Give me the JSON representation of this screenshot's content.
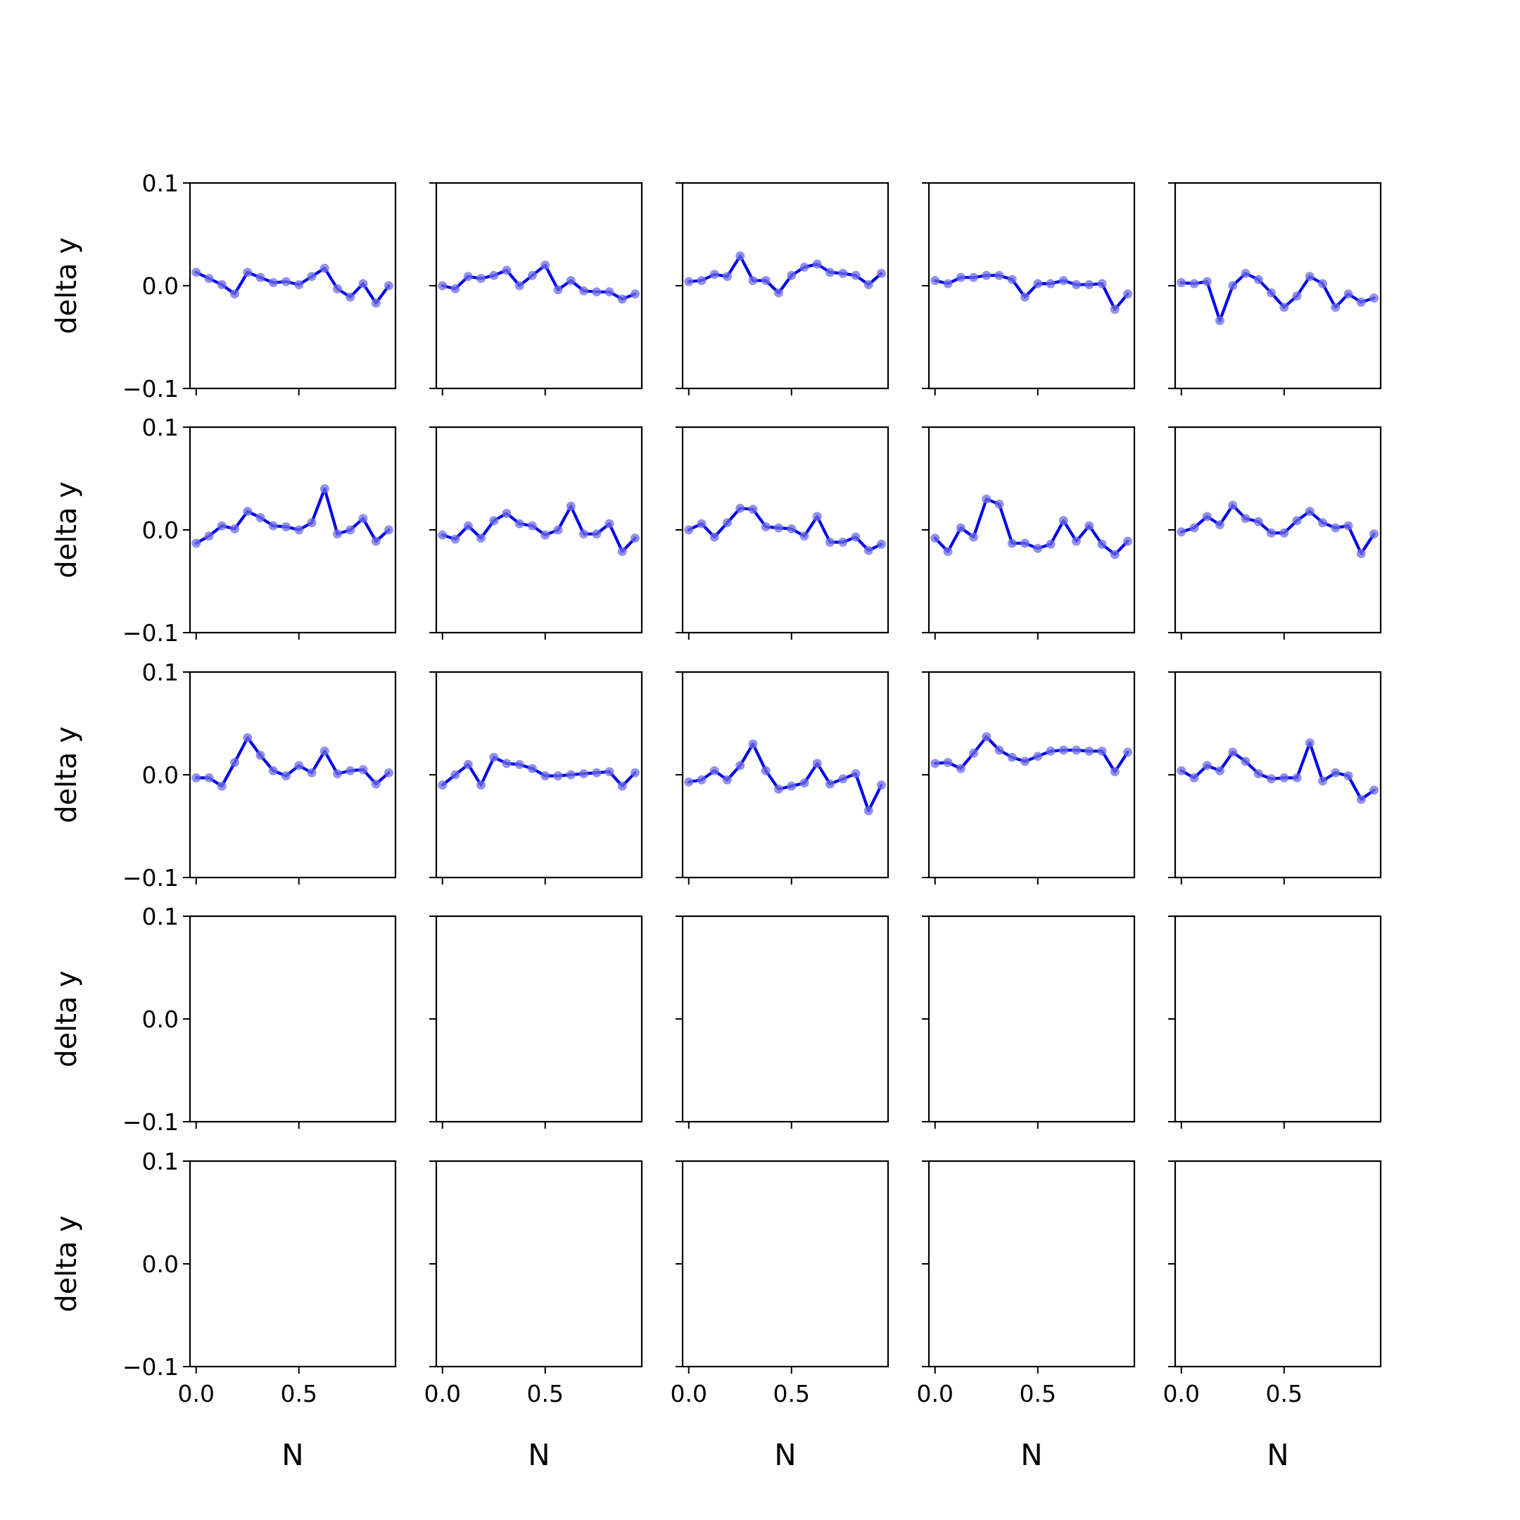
{
  "chart_data": {
    "type": "line",
    "layout": {
      "rows": 5,
      "cols": 5
    },
    "xlabel": "N",
    "ylabel": "delta y",
    "ylim": [
      -0.1,
      0.1
    ],
    "xlim": [
      -0.03,
      0.97
    ],
    "yticks": [
      -0.1,
      0.0,
      0.1
    ],
    "ytick_labels": [
      "−0.1",
      "0.0",
      "0.1"
    ],
    "xticks": [
      0.0,
      0.5
    ],
    "xtick_labels": [
      "0.0",
      "0.5"
    ],
    "x": [
      0.0,
      0.0625,
      0.125,
      0.1875,
      0.25,
      0.3125,
      0.375,
      0.4375,
      0.5,
      0.5625,
      0.625,
      0.6875,
      0.75,
      0.8125,
      0.875,
      0.9375
    ],
    "line_color": "#0000ee",
    "marker_color": "#6f6fe6",
    "panels": [
      [
        0.013,
        0.007,
        0.001,
        -0.008,
        0.013,
        0.008,
        0.003,
        0.004,
        0.001,
        0.009,
        0.017,
        -0.003,
        -0.011,
        0.002,
        -0.017,
        0.0
      ],
      [
        0.0,
        -0.003,
        0.009,
        0.007,
        0.01,
        0.015,
        0.0,
        0.01,
        0.02,
        -0.004,
        0.005,
        -0.005,
        -0.006,
        -0.006,
        -0.013,
        -0.008
      ],
      [
        0.004,
        0.005,
        0.011,
        0.009,
        0.029,
        0.005,
        0.005,
        -0.007,
        0.01,
        0.018,
        0.021,
        0.013,
        0.012,
        0.01,
        0.001,
        0.012
      ],
      [
        0.005,
        0.002,
        0.008,
        0.008,
        0.01,
        0.01,
        0.006,
        -0.011,
        0.002,
        0.002,
        0.005,
        0.001,
        0.001,
        0.002,
        -0.023,
        -0.008
      ],
      [
        0.003,
        0.002,
        0.004,
        -0.034,
        0.0,
        0.012,
        0.006,
        -0.007,
        -0.021,
        -0.01,
        0.009,
        0.002,
        -0.021,
        -0.008,
        -0.016,
        -0.012
      ],
      [
        -0.013,
        -0.006,
        0.004,
        0.001,
        0.018,
        0.012,
        0.004,
        0.003,
        0.0,
        0.007,
        0.04,
        -0.004,
        0.0,
        0.011,
        -0.011,
        0.0
      ],
      [
        -0.005,
        -0.009,
        0.004,
        -0.008,
        0.009,
        0.016,
        0.006,
        0.004,
        -0.005,
        0.0,
        0.023,
        -0.004,
        -0.004,
        0.006,
        -0.021,
        -0.008
      ],
      [
        0.0,
        0.006,
        -0.007,
        0.007,
        0.021,
        0.02,
        0.003,
        0.002,
        0.001,
        -0.006,
        0.013,
        -0.012,
        -0.012,
        -0.007,
        -0.02,
        -0.014
      ],
      [
        -0.008,
        -0.021,
        0.002,
        -0.007,
        0.03,
        0.025,
        -0.013,
        -0.013,
        -0.018,
        -0.014,
        0.009,
        -0.011,
        0.004,
        -0.014,
        -0.024,
        -0.011
      ],
      [
        -0.002,
        0.002,
        0.013,
        0.005,
        0.024,
        0.011,
        0.008,
        -0.003,
        -0.003,
        0.009,
        0.018,
        0.007,
        0.002,
        0.004,
        -0.023,
        -0.004
      ],
      [
        -0.003,
        -0.003,
        -0.011,
        0.012,
        0.036,
        0.019,
        0.004,
        -0.001,
        0.009,
        0.002,
        0.023,
        0.001,
        0.004,
        0.005,
        -0.009,
        0.002
      ],
      [
        -0.01,
        0.0,
        0.01,
        -0.01,
        0.017,
        0.011,
        0.01,
        0.006,
        -0.001,
        -0.001,
        0.0,
        0.001,
        0.002,
        0.003,
        -0.011,
        0.002
      ],
      [
        -0.007,
        -0.005,
        0.004,
        -0.005,
        0.009,
        0.03,
        0.004,
        -0.014,
        -0.011,
        -0.008,
        0.011,
        -0.009,
        -0.004,
        0.001,
        -0.035,
        -0.01
      ],
      [
        0.011,
        0.012,
        0.006,
        0.021,
        0.037,
        0.024,
        0.017,
        0.013,
        0.018,
        0.023,
        0.024,
        0.024,
        0.023,
        0.023,
        0.003,
        0.022
      ],
      [
        0.004,
        -0.003,
        0.009,
        0.004,
        0.022,
        0.013,
        0.001,
        -0.004,
        -0.003,
        -0.003,
        0.031,
        -0.006,
        0.002,
        -0.001,
        -0.024,
        -0.015
      ]
    ]
  }
}
